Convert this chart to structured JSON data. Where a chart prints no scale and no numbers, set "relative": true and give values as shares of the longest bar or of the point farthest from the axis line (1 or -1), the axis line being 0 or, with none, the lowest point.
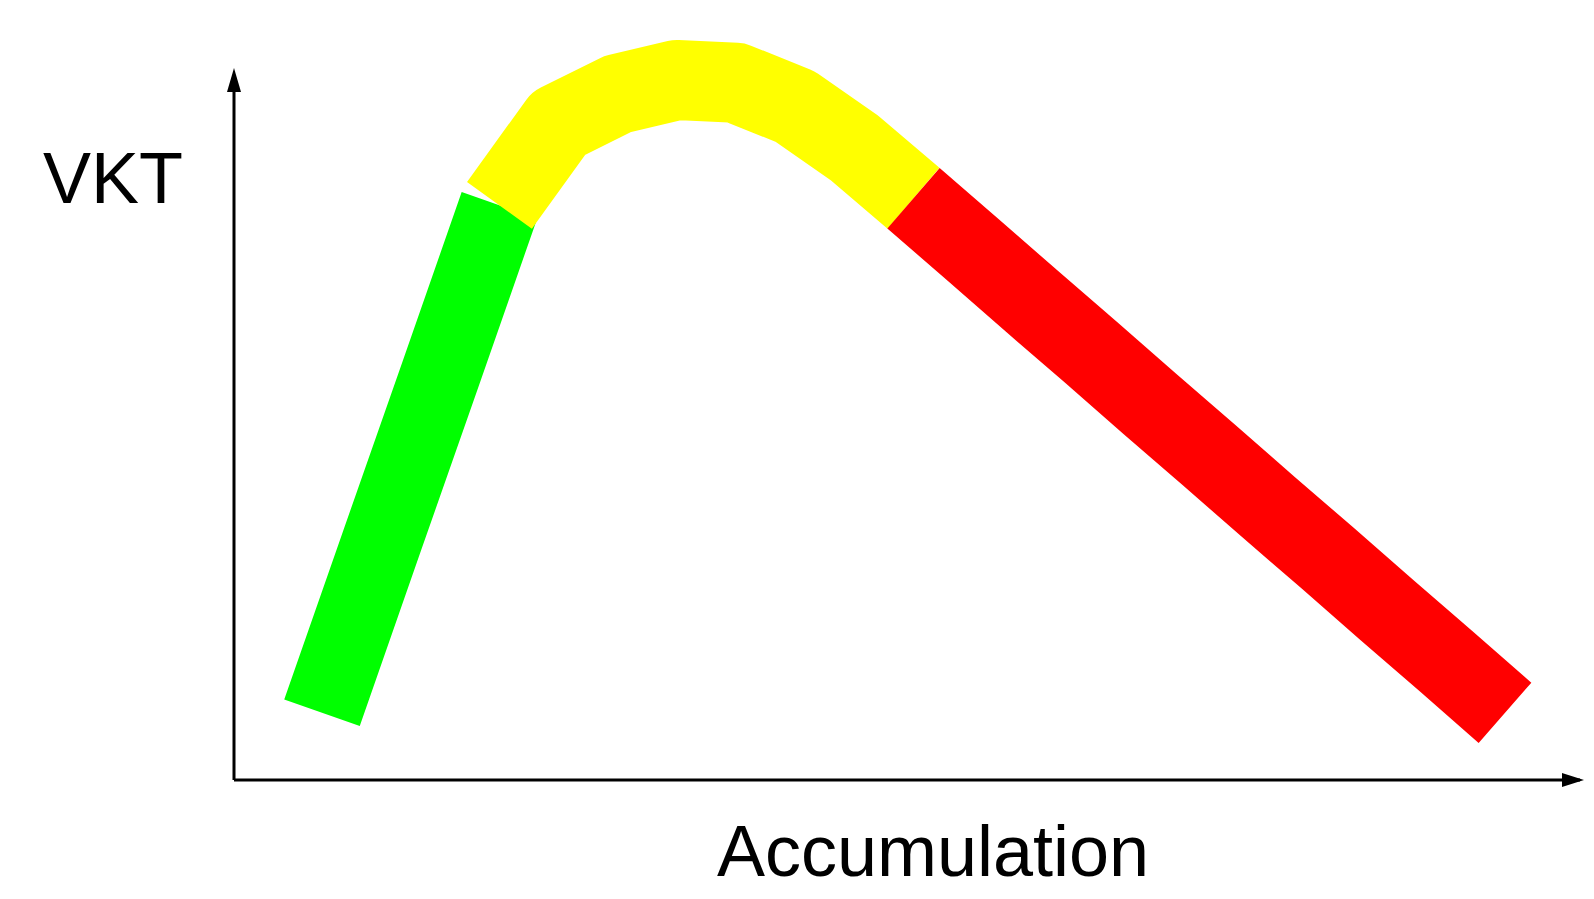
{
  "chart_data": {
    "type": "line",
    "relative": true,
    "xlabel": "Accumulation",
    "ylabel": "VKT",
    "line_style": "solid",
    "categories": [
      null,
      null,
      null,
      null,
      null,
      null,
      null,
      null,
      null,
      null,
      null,
      null,
      null,
      null,
      null,
      null,
      null,
      null,
      null,
      null,
      null
    ],
    "series": [
      {
        "color": "#00ff00",
        "values": [
          0.096,
          0.338,
          0.579,
          0.821,
          null,
          null,
          null,
          null,
          null,
          null,
          null,
          null,
          null,
          null,
          null,
          null,
          null,
          null,
          null,
          null,
          null
        ]
      },
      {
        "color": "#ffff00",
        "values": [
          null,
          null,
          null,
          0.821,
          0.938,
          0.98,
          1.0,
          0.996,
          0.962,
          0.903,
          0.831,
          null,
          null,
          null,
          null,
          null,
          null,
          null,
          null,
          null,
          null
        ]
      },
      {
        "color": "#ff0000",
        "values": [
          null,
          null,
          null,
          null,
          null,
          null,
          null,
          null,
          null,
          null,
          0.831,
          0.758,
          0.684,
          0.611,
          0.537,
          0.464,
          0.39,
          0.317,
          0.243,
          0.17,
          0.096
        ]
      }
    ]
  }
}
